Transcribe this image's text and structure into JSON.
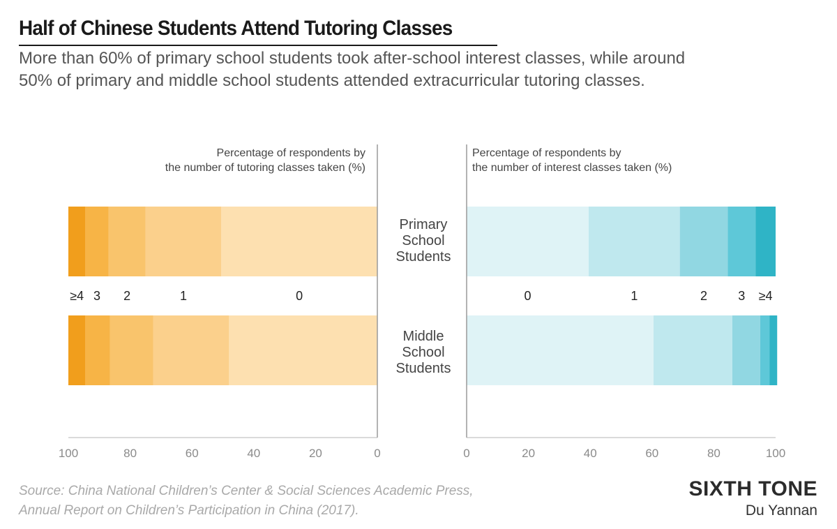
{
  "header": {
    "title": "Half of Chinese Students Attend Tutoring Classes",
    "subtitle": "More than 60% of primary school students took after-school interest classes, while around 50% of primary and middle school students attended extracurricular tutoring classes."
  },
  "chart_data": {
    "type": "bar",
    "orientation": "horizontal",
    "stacked": true,
    "categories": [
      "Primary School Students",
      "Middle School Students"
    ],
    "panels": [
      {
        "title": "Percentage of respondents by the number of tutoring classes taken (%)",
        "title_lines": [
          "Percentage of respondents by",
          "the number of tutoring classes taken (%)"
        ],
        "direction": "leftward",
        "xlim": [
          0,
          100
        ],
        "ticks": [
          "100",
          "80",
          "60",
          "40",
          "20",
          "0"
        ],
        "series": [
          {
            "name": "0",
            "values": [
              50.5,
              48
            ],
            "color": "#fde0b0"
          },
          {
            "name": "1",
            "values": [
              24.5,
              24.5
            ],
            "color": "#fbd08c"
          },
          {
            "name": "2",
            "values": [
              12,
              14
            ],
            "color": "#f9c46c"
          },
          {
            "name": "3",
            "values": [
              7.5,
              8
            ],
            "color": "#f7b446"
          },
          {
            "name": "≥4",
            "values": [
              5.5,
              5.5
            ],
            "color": "#f19e1c"
          }
        ]
      },
      {
        "title": "Percentage of respondents by the number of interest classes taken (%)",
        "title_lines": [
          "Percentage of respondents by",
          "the number of interest classes taken (%)"
        ],
        "direction": "rightward",
        "xlim": [
          0,
          100
        ],
        "ticks": [
          "0",
          "20",
          "40",
          "60",
          "80",
          "100"
        ],
        "series": [
          {
            "name": "0",
            "values": [
              39.5,
              60.5
            ],
            "color": "#dff3f6"
          },
          {
            "name": "1",
            "values": [
              29.5,
              25.5
            ],
            "color": "#bfe8ee"
          },
          {
            "name": "2",
            "values": [
              15.5,
              9
            ],
            "color": "#91d7e2"
          },
          {
            "name": "3",
            "values": [
              9,
              3
            ],
            "color": "#5ec8d8"
          },
          {
            "name": "≥4",
            "values": [
              6.5,
              2.5
            ],
            "color": "#2fb4c6"
          }
        ]
      }
    ]
  },
  "footer": {
    "source_line1": "Source: China National Children’s Center & Social Sciences Academic Press,",
    "source_line2": "Annual Report on Children’s Participation in China (2017).",
    "brand": "SIXTH TONE",
    "author": "Du Yannan"
  }
}
